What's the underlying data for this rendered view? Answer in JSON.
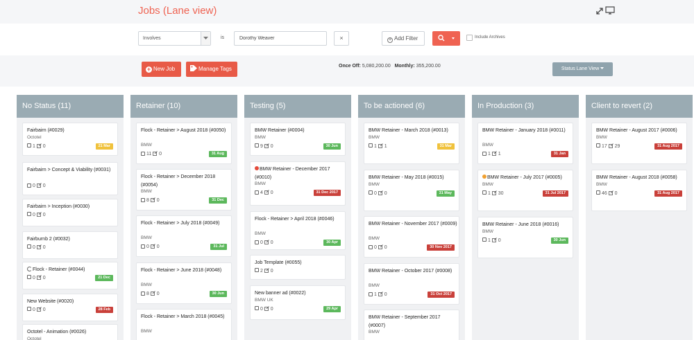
{
  "header": {
    "title": "Jobs (Lane view)"
  },
  "filters": {
    "field": "Involves",
    "operator": "is",
    "value": "Dorothy Weaver",
    "clear": "×",
    "add_filter": "Add Filter",
    "include_archives": "Include Archives"
  },
  "actions": {
    "new_job": "New Job",
    "manage_tags": "Manage Tags",
    "once_off_label": "Once Off:",
    "once_off_value": "5,080,200.00",
    "monthly_label": "Monthly:",
    "monthly_value": "355,200.00",
    "view_select": "Status Lane View"
  },
  "lanes": [
    {
      "title": "No Status (11)",
      "cards": [
        {
          "title": "Fairbairn (#0029)",
          "client": "Octotel",
          "tasks": "1",
          "notes": "0",
          "badge": "21 Mar",
          "badge_color": "yellow"
        },
        {
          "title": "Fairbairn > Concept & Viability (#0031)",
          "client": "",
          "tasks": "0",
          "notes": "0",
          "badge": "",
          "badge_color": ""
        },
        {
          "title": "Fairbairn > Inception (#0030)",
          "client": "",
          "tasks": "0",
          "notes": "0",
          "badge": "",
          "badge_color": ""
        },
        {
          "title": "Fairburnb 2 (#0032)",
          "client": "",
          "tasks": "0",
          "notes": "0",
          "badge": "",
          "badge_color": ""
        },
        {
          "title": "Flock - Retainer (#0044)",
          "client": "",
          "tasks": "0",
          "notes": "0",
          "badge": "21 Dec",
          "badge_color": "green",
          "icon": "spinner"
        },
        {
          "title": "New Website (#0020)",
          "client": "",
          "tasks": "0",
          "notes": "0",
          "badge": "28 Feb",
          "badge_color": "red"
        },
        {
          "title": "Octotel - Animation (#0026)",
          "client": "Octotel",
          "tasks": "",
          "notes": "",
          "badge": "",
          "badge_color": ""
        }
      ]
    },
    {
      "title": "Retainer (10)",
      "cards": [
        {
          "title": "Flock - Retainer > August 2018 (#0050)",
          "client": "BMW",
          "tasks": "11",
          "notes": "0",
          "badge": "31 Aug",
          "badge_color": "green"
        },
        {
          "title": "Flock - Retainer > December 2018 (#0054)",
          "client": "BMW",
          "tasks": "8",
          "notes": "0",
          "badge": "31 Dec",
          "badge_color": "green"
        },
        {
          "title": "Flock - Retainer > July 2018 (#0049)",
          "client": "BMW",
          "tasks": "0",
          "notes": "0",
          "badge": "31 Jul",
          "badge_color": "green"
        },
        {
          "title": "Flock - Retainer > June 2018 (#0048)",
          "client": "BMW",
          "tasks": "8",
          "notes": "0",
          "badge": "30 Jun",
          "badge_color": "green"
        },
        {
          "title": "Flock - Retainer > March 2018 (#0045)",
          "client": "BMW",
          "tasks": "",
          "notes": "",
          "badge": "",
          "badge_color": ""
        }
      ]
    },
    {
      "title": "Testing (5)",
      "cards": [
        {
          "title": "BMW Retainer (#0004)",
          "client": "BMW",
          "tasks": "9",
          "notes": "0",
          "badge": "30 Jun",
          "badge_color": "green"
        },
        {
          "title": "BMW Retainer - December 2017 (#0010)",
          "client": "BMW",
          "tasks": "4",
          "notes": "0",
          "badge": "31 Dec 2017",
          "badge_color": "red",
          "icon": "red-alert"
        },
        {
          "title": "Flock - Retainer > April 2018 (#0046)",
          "client": "BMW",
          "tasks": "0",
          "notes": "0",
          "badge": "30 Apr",
          "badge_color": "green"
        },
        {
          "title": "Job Template (#0055)",
          "client": "",
          "tasks": "2",
          "notes": "0",
          "badge": "",
          "badge_color": ""
        },
        {
          "title": "New banner ad (#0022)",
          "client": "BMW UK",
          "tasks": "0",
          "notes": "0",
          "badge": "29 Apr",
          "badge_color": "green"
        }
      ]
    },
    {
      "title": "To be actioned (6)",
      "cards": [
        {
          "title": "BMW Retainer - March 2018 (#0013)",
          "client": "BMW",
          "tasks": "1",
          "notes": "1",
          "badge": "31 Mar",
          "badge_color": "yellow"
        },
        {
          "title": "BMW Retainer - May 2018 (#0015)",
          "client": "BMW",
          "tasks": "0",
          "notes": "0",
          "badge": "31 May",
          "badge_color": "green"
        },
        {
          "title": "BMW Retainer - November 2017 (#0009)",
          "client": "BMW",
          "tasks": "0",
          "notes": "0",
          "badge": "30 Nov 2017",
          "badge_color": "red"
        },
        {
          "title": "BMW Retainer - October 2017 (#0008)",
          "client": "BMW",
          "tasks": "1",
          "notes": "0",
          "badge": "31 Oct 2017",
          "badge_color": "red"
        },
        {
          "title": "BMW Retainer - September 2017 (#0007)",
          "client": "BMW",
          "tasks": "",
          "notes": "",
          "badge": "",
          "badge_color": ""
        }
      ]
    },
    {
      "title": "In Production (3)",
      "cards": [
        {
          "title": "BMW Retainer - January 2018 (#0011)",
          "client": "BMW",
          "tasks": "1",
          "notes": "1",
          "badge": "31 Jan",
          "badge_color": "red"
        },
        {
          "title": "BMW Retainer - July 2017 (#0005)",
          "client": "BMW",
          "tasks": "1",
          "notes": "30",
          "badge": "31 Jul 2017",
          "badge_color": "red",
          "icon": "orange-alert"
        },
        {
          "title": "BMW Retainer - June 2018 (#0016)",
          "client": "BMW",
          "tasks": "1",
          "notes": "0",
          "badge": "30 Jun",
          "badge_color": "green"
        }
      ]
    },
    {
      "title": "Client to revert (2)",
      "cards": [
        {
          "title": "BMW Retainer - August 2017 (#0006)",
          "client": "BMW",
          "tasks": "17",
          "notes": "29",
          "badge": "31 Aug 2017",
          "badge_color": "red"
        },
        {
          "title": "BMW Retainer - August 2018 (#0058)",
          "client": "BMW",
          "tasks": "46",
          "notes": "0",
          "badge": "31 Aug 2017",
          "badge_color": "red"
        }
      ]
    }
  ]
}
